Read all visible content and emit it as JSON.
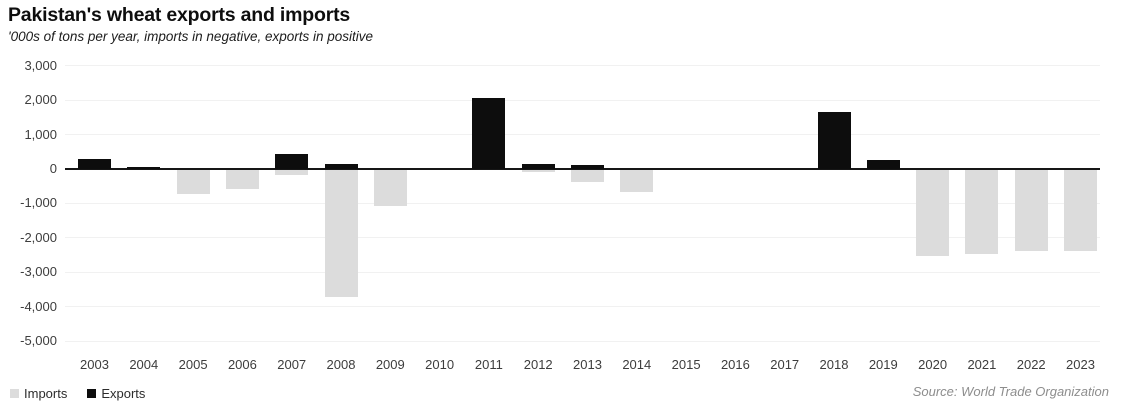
{
  "header": {
    "title": "Pakistan's wheat exports and imports",
    "subtitle": "'000s of tons per year, imports in negative, exports in positive"
  },
  "chart_data": {
    "type": "bar",
    "title": "Pakistan's wheat exports and imports",
    "subtitle": "'000s of tons per year, imports in negative, exports in positive",
    "categories": [
      "2003",
      "2004",
      "2005",
      "2006",
      "2007",
      "2008",
      "2009",
      "2010",
      "2011",
      "2012",
      "2013",
      "2014",
      "2015",
      "2016",
      "2017",
      "2018",
      "2019",
      "2020",
      "2021",
      "2022",
      "2023"
    ],
    "series": [
      {
        "name": "Imports",
        "color": "#dcdcdc",
        "values": [
          0,
          0,
          -700,
          -550,
          -150,
          -3700,
          -1050,
          0,
          0,
          -50,
          -350,
          -650,
          0,
          0,
          0,
          0,
          0,
          -2500,
          -2450,
          -2350,
          -2350
        ]
      },
      {
        "name": "Exports",
        "color": "#0d0d0d",
        "values": [
          300,
          50,
          0,
          0,
          430,
          150,
          0,
          0,
          2050,
          150,
          130,
          0,
          0,
          0,
          0,
          1650,
          250,
          0,
          0,
          0,
          0
        ]
      }
    ],
    "xlabel": "",
    "ylabel": "",
    "ylim": [
      -5000,
      3000
    ],
    "yticks": [
      {
        "value": 3000,
        "label": "3,000"
      },
      {
        "value": 2000,
        "label": "2,000"
      },
      {
        "value": 1000,
        "label": "1,000"
      },
      {
        "value": 0,
        "label": "0"
      },
      {
        "value": -1000,
        "label": "-1,000"
      },
      {
        "value": -2000,
        "label": "-2,000"
      },
      {
        "value": -3000,
        "label": "-3,000"
      },
      {
        "value": -4000,
        "label": "-4,000"
      },
      {
        "value": -5000,
        "label": "-5,000"
      }
    ],
    "grid": "horizontal-only",
    "legend_position": "bottom-left",
    "source": "Source: World Trade Organization"
  },
  "legend": {
    "items": [
      {
        "label": "Imports",
        "color": "#dcdcdc"
      },
      {
        "label": "Exports",
        "color": "#0d0d0d"
      }
    ]
  },
  "footer": {
    "source": "Source: World Trade Organization"
  }
}
